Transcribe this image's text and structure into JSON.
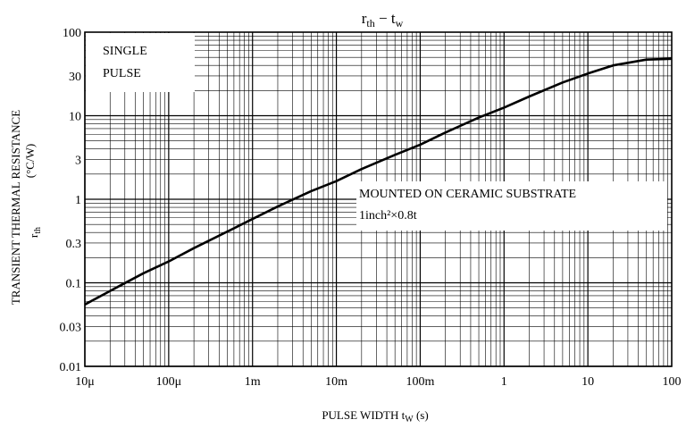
{
  "chart_data": {
    "type": "line",
    "title": "r th − t w",
    "xlabel": "PULSE WIDTH  tw  (s)",
    "ylabel_line1": "TRANSIENT THERMAL RESISTANCE",
    "ylabel_line2": "r th  (°C/W)",
    "x_scale": "log",
    "y_scale": "log",
    "xlim": [
      1e-05,
      100
    ],
    "ylim": [
      0.01,
      100
    ],
    "grid": true,
    "x_ticks": [
      {
        "value": 1e-05,
        "label": "10μ"
      },
      {
        "value": 0.0001,
        "label": "100μ"
      },
      {
        "value": 0.001,
        "label": "1m"
      },
      {
        "value": 0.01,
        "label": "10m"
      },
      {
        "value": 0.1,
        "label": "100m"
      },
      {
        "value": 1,
        "label": "1"
      },
      {
        "value": 10,
        "label": "10"
      },
      {
        "value": 100,
        "label": "100"
      }
    ],
    "y_ticks": [
      {
        "value": 100,
        "label": "100"
      },
      {
        "value": 30,
        "label": "30"
      },
      {
        "value": 10,
        "label": "10"
      },
      {
        "value": 3,
        "label": "3"
      },
      {
        "value": 1,
        "label": "1"
      },
      {
        "value": 0.3,
        "label": "0.3"
      },
      {
        "value": 0.1,
        "label": "0.1"
      },
      {
        "value": 0.03,
        "label": "0.03"
      },
      {
        "value": 0.01,
        "label": "0.01"
      }
    ],
    "annotations": [
      {
        "lines": [
          "SINGLE",
          "PULSE"
        ]
      },
      {
        "lines": [
          "MOUNTED ON CERAMIC SUBSTRATE",
          "1inch²×0.8t"
        ]
      }
    ],
    "series": [
      {
        "x": [
          1e-05,
          2e-05,
          5e-05,
          0.0001,
          0.0002,
          0.0005,
          0.001,
          0.002,
          0.005,
          0.01,
          0.02,
          0.05,
          0.1,
          0.2,
          0.5,
          1,
          2,
          5,
          10,
          20,
          50,
          100
        ],
        "y": [
          0.055,
          0.08,
          0.13,
          0.18,
          0.26,
          0.41,
          0.58,
          0.82,
          1.25,
          1.65,
          2.3,
          3.4,
          4.5,
          6.3,
          9.5,
          12.5,
          17,
          25,
          32,
          40,
          47,
          48
        ]
      }
    ]
  }
}
